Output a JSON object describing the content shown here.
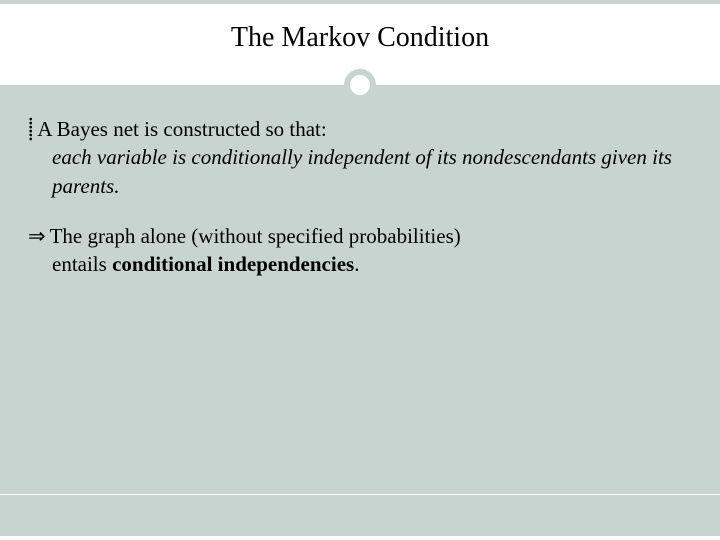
{
  "slide": {
    "title": "The Markov Condition",
    "colors": {
      "background_body": "#c8d4cf",
      "background_header": "#ffffff",
      "text": "#000000",
      "divider": "#b8c4bf",
      "circle_border": "#c8d4cf",
      "circle_fill": "#ffffff",
      "footer_line": "#ffffff"
    },
    "typography": {
      "title_fontsize": 28,
      "body_fontsize": 21,
      "font_family": "Georgia, serif"
    },
    "bullets": [
      {
        "marker": "⸽",
        "lead": "A Bayes net is constructed so that:",
        "cont_italic": "each variable is conditionally independent of its nondescendants given its parents."
      },
      {
        "marker": "⇒",
        "lead": "The graph alone (without specified probabilities)",
        "cont_plain_prefix": "entails ",
        "cont_plain_bold": "conditional independencies",
        "cont_plain_suffix": "."
      }
    ]
  }
}
